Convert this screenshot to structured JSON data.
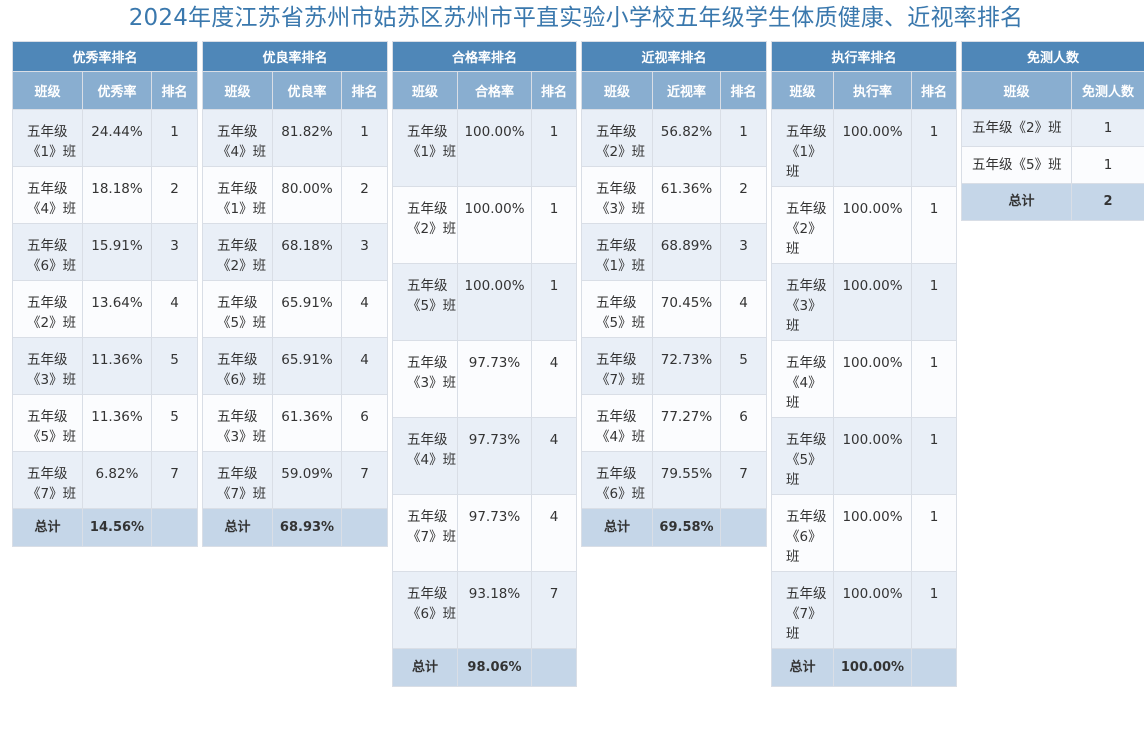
{
  "title": "2024年度江苏省苏州市姑苏区苏州市平直实验小学校五年级学生体质健康、近视率排名",
  "tables": {
    "excellent": {
      "title": "优秀率排名",
      "headers": [
        "班级",
        "优秀率",
        "排名"
      ],
      "rows": [
        {
          "cls": "五年级《1》班",
          "value": "24.44%",
          "rank": "1"
        },
        {
          "cls": "五年级《4》班",
          "value": "18.18%",
          "rank": "2"
        },
        {
          "cls": "五年级《6》班",
          "value": "15.91%",
          "rank": "3"
        },
        {
          "cls": "五年级《2》班",
          "value": "13.64%",
          "rank": "4"
        },
        {
          "cls": "五年级《3》班",
          "value": "11.36%",
          "rank": "5"
        },
        {
          "cls": "五年级《5》班",
          "value": "11.36%",
          "rank": "5"
        },
        {
          "cls": "五年级《7》班",
          "value": "6.82%",
          "rank": "7"
        }
      ],
      "total": {
        "label": "总计",
        "value": "14.56%"
      }
    },
    "good": {
      "title": "优良率排名",
      "headers": [
        "班级",
        "优良率",
        "排名"
      ],
      "rows": [
        {
          "cls": "五年级《4》班",
          "value": "81.82%",
          "rank": "1"
        },
        {
          "cls": "五年级《1》班",
          "value": "80.00%",
          "rank": "2"
        },
        {
          "cls": "五年级《2》班",
          "value": "68.18%",
          "rank": "3"
        },
        {
          "cls": "五年级《5》班",
          "value": "65.91%",
          "rank": "4"
        },
        {
          "cls": "五年级《6》班",
          "value": "65.91%",
          "rank": "4"
        },
        {
          "cls": "五年级《3》班",
          "value": "61.36%",
          "rank": "6"
        },
        {
          "cls": "五年级《7》班",
          "value": "59.09%",
          "rank": "7"
        }
      ],
      "total": {
        "label": "总计",
        "value": "68.93%"
      }
    },
    "pass": {
      "title": "合格率排名",
      "headers": [
        "班级",
        "合格率",
        "排名"
      ],
      "rows": [
        {
          "cls": "五年级《1》班",
          "value": "100.00%",
          "rank": "1"
        },
        {
          "cls": "五年级《2》班",
          "value": "100.00%",
          "rank": "1"
        },
        {
          "cls": "五年级《5》班",
          "value": "100.00%",
          "rank": "1"
        },
        {
          "cls": "五年级《3》班",
          "value": "97.73%",
          "rank": "4"
        },
        {
          "cls": "五年级《4》班",
          "value": "97.73%",
          "rank": "4"
        },
        {
          "cls": "五年级《7》班",
          "value": "97.73%",
          "rank": "4"
        },
        {
          "cls": "五年级《6》班",
          "value": "93.18%",
          "rank": "7"
        }
      ],
      "total": {
        "label": "总计",
        "value": "98.06%"
      }
    },
    "myopia": {
      "title": "近视率排名",
      "headers": [
        "班级",
        "近视率",
        "排名"
      ],
      "rows": [
        {
          "cls": "五年级《2》班",
          "value": "56.82%",
          "rank": "1"
        },
        {
          "cls": "五年级《3》班",
          "value": "61.36%",
          "rank": "2"
        },
        {
          "cls": "五年级《1》班",
          "value": "68.89%",
          "rank": "3"
        },
        {
          "cls": "五年级《5》班",
          "value": "70.45%",
          "rank": "4"
        },
        {
          "cls": "五年级《7》班",
          "value": "72.73%",
          "rank": "5"
        },
        {
          "cls": "五年级《4》班",
          "value": "77.27%",
          "rank": "6"
        },
        {
          "cls": "五年级《6》班",
          "value": "79.55%",
          "rank": "7"
        }
      ],
      "total": {
        "label": "总计",
        "value": "69.58%"
      }
    },
    "exec": {
      "title": "执行率排名",
      "headers": [
        "班级",
        "执行率",
        "排名"
      ],
      "rows": [
        {
          "cls": "五年级《1》班",
          "value": "100.00%",
          "rank": "1"
        },
        {
          "cls": "五年级《2》班",
          "value": "100.00%",
          "rank": "1"
        },
        {
          "cls": "五年级《3》班",
          "value": "100.00%",
          "rank": "1"
        },
        {
          "cls": "五年级《4》班",
          "value": "100.00%",
          "rank": "1"
        },
        {
          "cls": "五年级《5》班",
          "value": "100.00%",
          "rank": "1"
        },
        {
          "cls": "五年级《6》班",
          "value": "100.00%",
          "rank": "1"
        },
        {
          "cls": "五年级《7》班",
          "value": "100.00%",
          "rank": "1"
        }
      ],
      "total": {
        "label": "总计",
        "value": "100.00%"
      }
    },
    "exempt": {
      "title": "免测人数",
      "headers": [
        "班级",
        "免测人数"
      ],
      "rows": [
        {
          "cls": "五年级《2》班",
          "value": "1"
        },
        {
          "cls": "五年级《5》班",
          "value": "1"
        }
      ],
      "total": {
        "label": "总计",
        "value": "2"
      }
    }
  }
}
